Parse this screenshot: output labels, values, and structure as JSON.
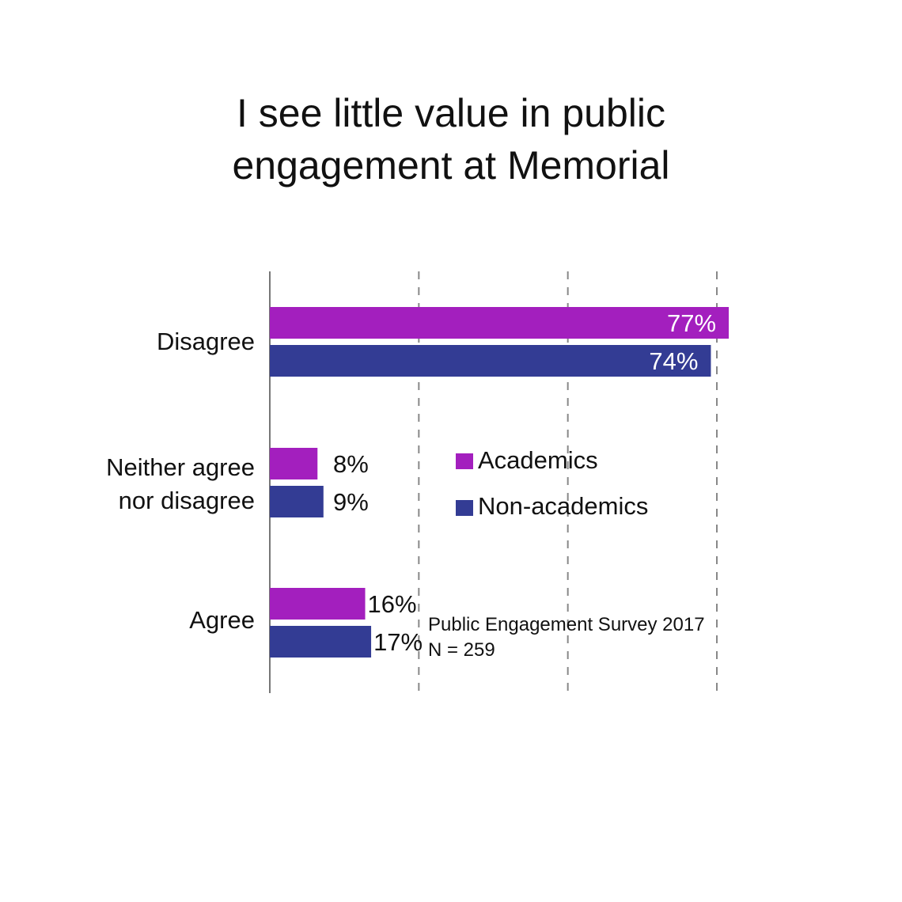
{
  "title_lines": [
    "I see little value in public",
    "engagement at Memorial"
  ],
  "legend": {
    "items": [
      {
        "label": "Academics",
        "color": "#a31fbe"
      },
      {
        "label": "Non-academics",
        "color": "#333c94"
      }
    ]
  },
  "source": {
    "line1": "Public Engagement Survey 2017",
    "line2": "N = 259"
  },
  "chart_data": {
    "type": "bar",
    "orientation": "horizontal",
    "title": "I see little value in public engagement at Memorial",
    "categories": [
      {
        "label": "Disagree",
        "lines": [
          "Disagree"
        ]
      },
      {
        "label": "Neither agree nor disagree",
        "lines": [
          "Neither agree",
          "nor disagree"
        ]
      },
      {
        "label": "Agree",
        "lines": [
          "Agree"
        ]
      }
    ],
    "series": [
      {
        "name": "Academics",
        "color": "#a31fbe",
        "values": [
          77,
          8,
          16
        ],
        "labels": [
          "77%",
          "8%",
          "16%"
        ]
      },
      {
        "name": "Non-academics",
        "color": "#333c94",
        "values": [
          74,
          9,
          17
        ],
        "labels": [
          "74%",
          "9%",
          "17%"
        ]
      }
    ],
    "xlim": [
      0,
      75
    ],
    "grid": true,
    "gridlines": [
      25,
      50,
      75
    ],
    "value_labels_inside": [
      true,
      false,
      false
    ],
    "legend_position": "center-right"
  }
}
